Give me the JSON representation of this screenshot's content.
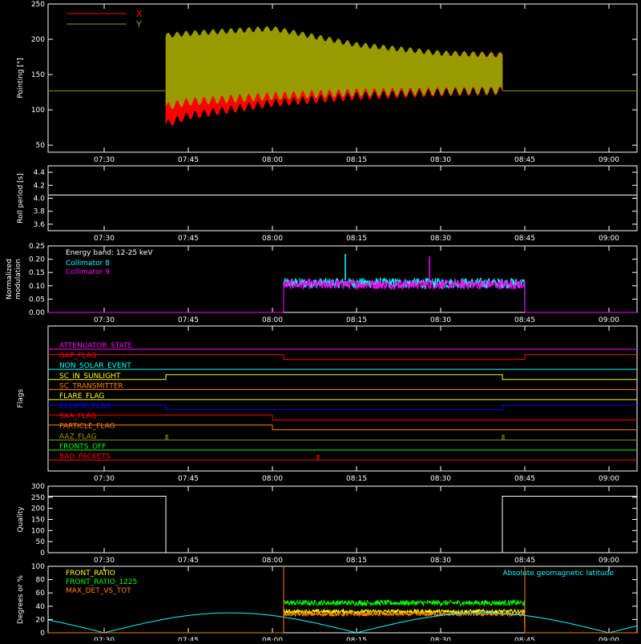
{
  "colors": {
    "background": "#000000",
    "axis": "#ffffff",
    "x_red": "#ff0000",
    "y_olive": "#999900",
    "cyan": "#00ffff",
    "magenta": "#ff00ff",
    "green": "#00ff00",
    "orange": "#ff8000",
    "yellow": "#ffff00",
    "blue": "#0000ff"
  },
  "time_ticks": [
    "07:30",
    "07:45",
    "08:00",
    "08:15",
    "08:30",
    "08:45",
    "09:00"
  ],
  "chart_data": [
    {
      "id": "pointing",
      "type": "area",
      "ylabel": "Pointing [\"]",
      "ylim": [
        40,
        250
      ],
      "yticks": [
        50,
        100,
        150,
        200,
        250
      ],
      "xlim": [
        "07:20",
        "09:05"
      ],
      "legend": [
        {
          "name": "X",
          "color": "#ff0000"
        },
        {
          "name": "Y",
          "color": "#999900"
        }
      ],
      "baseline_value": 127,
      "active_interval": [
        "07:41",
        "08:41"
      ],
      "series": [
        {
          "name": "X",
          "color": "#ff0000",
          "envelope": {
            "time": [
              "07:41",
              "07:45",
              "08:00",
              "08:15",
              "08:30",
              "08:41"
            ],
            "low": [
              80,
              92,
              110,
              120,
              125,
              127
            ],
            "high": [
              190,
              198,
              205,
              190,
              180,
              178
            ]
          }
        },
        {
          "name": "Y",
          "color": "#999900",
          "envelope": {
            "time": [
              "07:41",
              "07:45",
              "08:00",
              "08:15",
              "08:30",
              "08:41"
            ],
            "low": [
              105,
              112,
              120,
              125,
              127,
              128
            ],
            "high": [
              205,
              208,
              215,
              192,
              180,
              177
            ]
          }
        }
      ]
    },
    {
      "id": "roll",
      "type": "line",
      "ylabel": "Roll period [s]",
      "ylim": [
        3.5,
        4.5
      ],
      "yticks": [
        "3.6",
        "3.8",
        "4.0",
        "4.2",
        "4.4"
      ],
      "series": [
        {
          "name": "roll",
          "color": "#ffffff",
          "value": 4.05
        }
      ]
    },
    {
      "id": "modulation",
      "type": "line",
      "ylabel": "Normalized\nmodulation",
      "ylim": [
        0,
        0.25
      ],
      "yticks": [
        "0.00",
        "0.05",
        "0.10",
        "0.15",
        "0.20",
        "0.25"
      ],
      "annotation": "Energy band: 12-25 keV",
      "legend": [
        {
          "name": "Collimator 8",
          "color": "#00ffff"
        },
        {
          "name": "Collimator 9",
          "color": "#ff00ff"
        }
      ],
      "active_interval": [
        "08:02",
        "08:45"
      ],
      "series": [
        {
          "name": "Collimator 8",
          "color": "#00ffff",
          "mean": 0.11,
          "spread": 0.02
        },
        {
          "name": "Collimator 9",
          "color": "#ff00ff",
          "mean": 0.105,
          "spread": 0.018
        }
      ],
      "spikes": [
        {
          "time": "08:13",
          "value": 0.22,
          "color": "#00ffff"
        },
        {
          "time": "08:28",
          "value": 0.21,
          "color": "#ff00ff"
        }
      ]
    },
    {
      "id": "flags",
      "type": "line",
      "ylabel": "Flags",
      "flags": [
        {
          "name": "ATTENUATOR_STATE",
          "color": "#ff00ff",
          "segments": [
            [
              "07:20",
              "09:05",
              0
            ]
          ]
        },
        {
          "name": "GAP_FLAG",
          "color": "#ff0000",
          "segments": [
            [
              "07:20",
              "08:02",
              1
            ],
            [
              "08:02",
              "08:45",
              0
            ],
            [
              "08:45",
              "09:05",
              1
            ]
          ]
        },
        {
          "name": "NON_SOLAR_EVENT",
          "color": "#00ffff",
          "segments": [
            [
              "07:20",
              "09:05",
              0
            ]
          ]
        },
        {
          "name": "SC_IN_SUNLIGHT",
          "color": "#ffff00",
          "segments": [
            [
              "07:20",
              "07:41",
              0
            ],
            [
              "07:41",
              "08:41",
              1
            ],
            [
              "08:41",
              "09:05",
              0
            ]
          ]
        },
        {
          "name": "SC_TRANSMITTER",
          "color": "#ff8000",
          "segments": [
            [
              "07:20",
              "09:05",
              0
            ]
          ]
        },
        {
          "name": "FLARE_FLAG",
          "color": "#ffff00",
          "segments": [
            [
              "07:20",
              "09:05",
              0
            ]
          ]
        },
        {
          "name": "ECLIPSE_FLAG",
          "color": "#0000ff",
          "segments": [
            [
              "07:20",
              "07:41",
              1
            ],
            [
              "07:41",
              "08:41",
              0
            ],
            [
              "08:41",
              "09:05",
              1
            ]
          ]
        },
        {
          "name": "SAA_FLAG",
          "color": "#ff0000",
          "segments": [
            [
              "07:20",
              "08:00",
              1
            ],
            [
              "08:00",
              "09:05",
              0
            ]
          ]
        },
        {
          "name": "PARTICLE_FLAG",
          "color": "#ff8000",
          "segments": [
            [
              "07:20",
              "08:00",
              1
            ],
            [
              "08:00",
              "09:05",
              0
            ]
          ]
        },
        {
          "name": "AAZ_FLAG",
          "color": "#999900",
          "segments": [
            [
              "07:20",
              "09:05",
              0
            ]
          ],
          "blips": [
            "07:41",
            "08:41"
          ]
        },
        {
          "name": "FRONTS_OFF",
          "color": "#00ff00",
          "segments": [
            [
              "07:20",
              "09:05",
              0
            ]
          ]
        },
        {
          "name": "BAD_PACKETS",
          "color": "#ff0000",
          "segments": [
            [
              "07:20",
              "09:05",
              0
            ]
          ],
          "blips": [
            "08:08"
          ]
        }
      ]
    },
    {
      "id": "quality",
      "type": "line",
      "ylabel": "Quality",
      "ylim": [
        0,
        300
      ],
      "yticks": [
        "0",
        "50",
        "100",
        "150",
        "200",
        "250",
        "300"
      ],
      "series": [
        {
          "name": "quality",
          "color": "#ffffff",
          "steps": [
            [
              "07:20",
              "07:41",
              255
            ],
            [
              "07:41",
              "08:41",
              0
            ],
            [
              "08:41",
              "09:05",
              255
            ]
          ]
        }
      ]
    },
    {
      "id": "ratios",
      "type": "line",
      "ylabel": "Degrees or %",
      "ylim": [
        0,
        100
      ],
      "yticks": [
        "0",
        "20",
        "40",
        "60",
        "80",
        "100"
      ],
      "legend": [
        {
          "name": "FRONT_RATIO",
          "color": "#ffff00"
        },
        {
          "name": "FRONT_RATIO_1225",
          "color": "#00ff00"
        },
        {
          "name": "MAX_DET_VS_TOT",
          "color": "#ff8000"
        }
      ],
      "right_label": "Absolute geomagnetic latitude",
      "right_label_color": "#00ffff",
      "active_interval": [
        "08:02",
        "08:45"
      ],
      "series": [
        {
          "name": "FRONT_RATIO_1225",
          "color": "#00ff00",
          "mean": 45,
          "spread": 4
        },
        {
          "name": "FRONT_RATIO",
          "color": "#ffff00",
          "mean": 32,
          "spread": 3
        },
        {
          "name": "MAX_DET_VS_TOT",
          "color": "#ff8000",
          "mean": 28,
          "spread": 3
        },
        {
          "name": "Absolute geomagnetic latitude",
          "color": "#00ffff",
          "curve": "abs_sine",
          "amplitude": 30,
          "peaks": [
            "07:52",
            "08:37"
          ],
          "zeros": [
            "07:30",
            "08:15",
            "09:00"
          ]
        }
      ]
    }
  ]
}
